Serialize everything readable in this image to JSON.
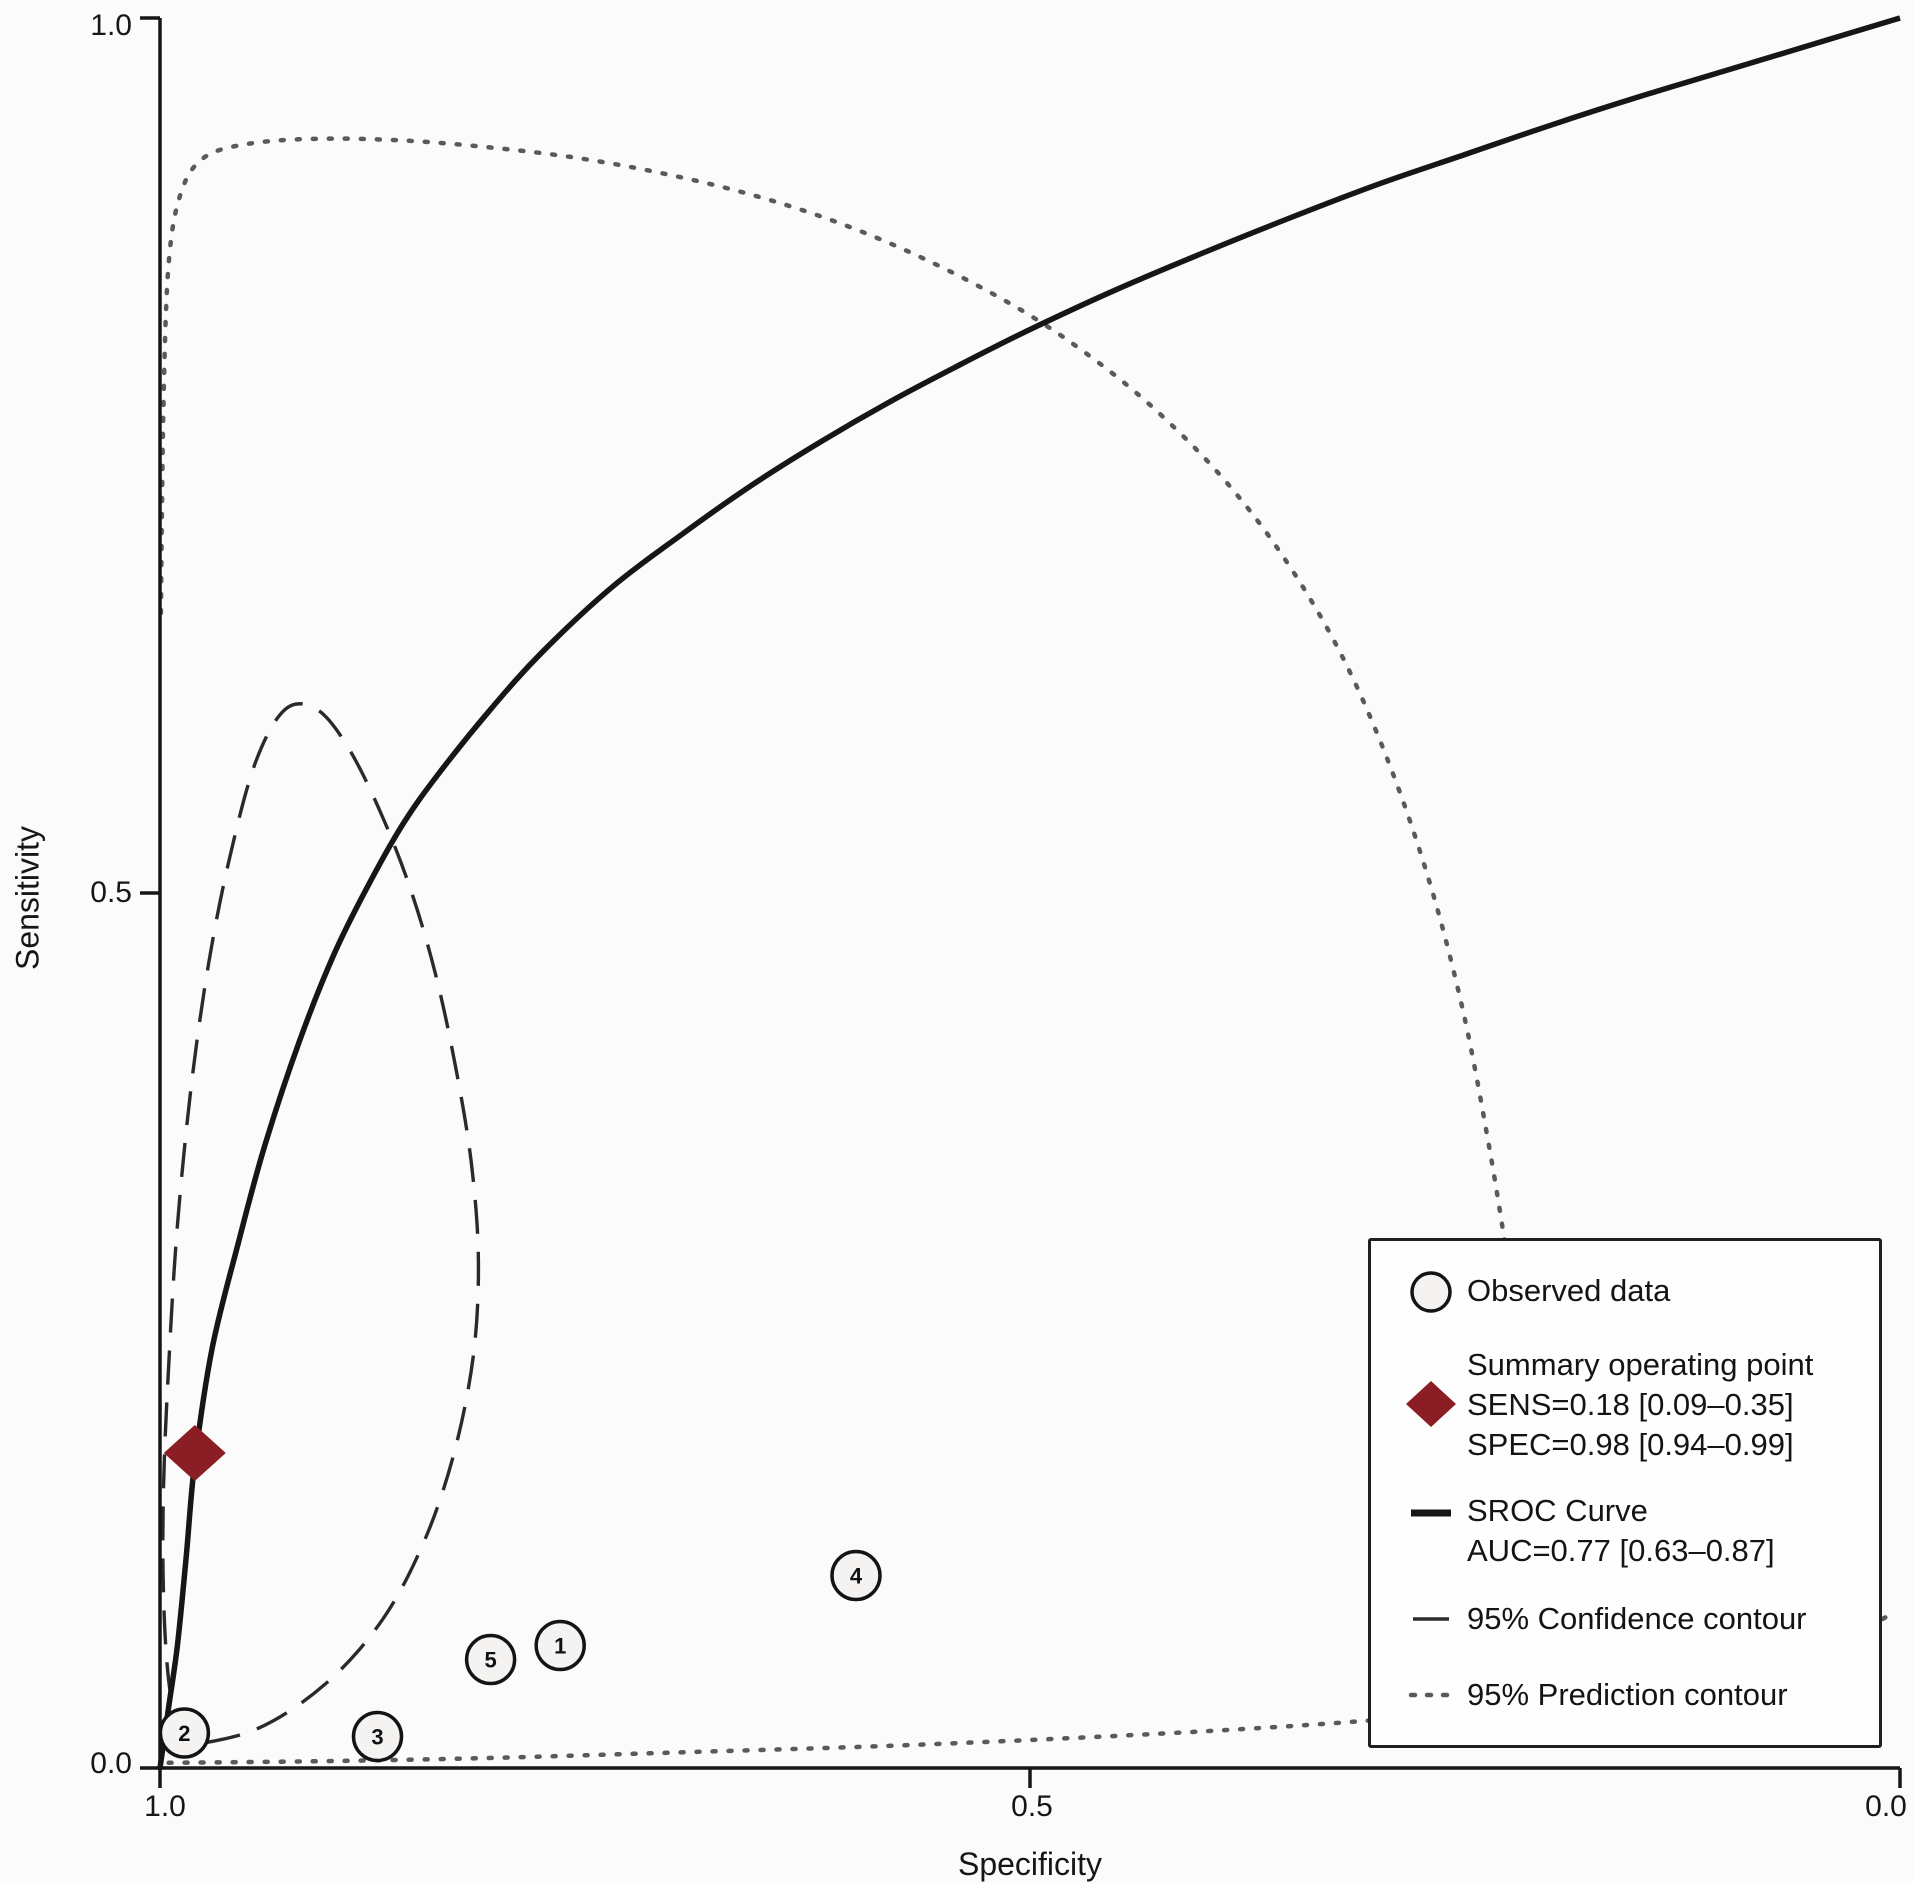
{
  "page": {
    "background": "#fbfbfb"
  },
  "chart_data": {
    "type": "line",
    "subtype": "SROC summary plot (scatter + curves)",
    "title": "",
    "xlabel": "Specificity",
    "ylabel": "Sensitivity",
    "x_axis": {
      "min": 0.0,
      "max": 1.0,
      "reversed": true,
      "ticks": [
        {
          "v": 1.0,
          "label": "1.0"
        },
        {
          "v": 0.5,
          "label": "0.5"
        },
        {
          "v": 0.0,
          "label": "0.0"
        }
      ]
    },
    "y_axis": {
      "min": 0.0,
      "max": 1.0,
      "ticks": [
        {
          "v": 1.0,
          "label": "1.0"
        },
        {
          "v": 0.5,
          "label": "0.5"
        },
        {
          "v": 0.0,
          "label": "0.0"
        }
      ]
    },
    "observed_points": [
      {
        "label": "1",
        "spec": 0.77,
        "sens": 0.07
      },
      {
        "label": "2",
        "spec": 0.986,
        "sens": 0.02
      },
      {
        "label": "3",
        "spec": 0.875,
        "sens": 0.018
      },
      {
        "label": "4",
        "spec": 0.6,
        "sens": 0.11
      },
      {
        "label": "5",
        "spec": 0.81,
        "sens": 0.062
      }
    ],
    "summary_point": {
      "spec": 0.98,
      "sens": 0.18,
      "sens_ci": "0.09–0.35",
      "spec_ci": "0.94–0.99"
    },
    "auc": {
      "value": 0.77,
      "ci": "0.63–0.87"
    },
    "sroc_curve": [
      [
        1.0,
        0.0
      ],
      [
        0.995,
        0.035
      ],
      [
        0.99,
        0.07
      ],
      [
        0.985,
        0.12
      ],
      [
        0.98,
        0.175
      ],
      [
        0.97,
        0.24
      ],
      [
        0.955,
        0.3
      ],
      [
        0.94,
        0.355
      ],
      [
        0.92,
        0.415
      ],
      [
        0.9,
        0.465
      ],
      [
        0.88,
        0.505
      ],
      [
        0.86,
        0.54
      ],
      [
        0.84,
        0.568
      ],
      [
        0.81,
        0.605
      ],
      [
        0.78,
        0.638
      ],
      [
        0.74,
        0.675
      ],
      [
        0.7,
        0.705
      ],
      [
        0.66,
        0.733
      ],
      [
        0.62,
        0.758
      ],
      [
        0.58,
        0.781
      ],
      [
        0.54,
        0.802
      ],
      [
        0.5,
        0.822
      ],
      [
        0.45,
        0.845
      ],
      [
        0.4,
        0.866
      ],
      [
        0.35,
        0.886
      ],
      [
        0.3,
        0.905
      ],
      [
        0.25,
        0.922
      ],
      [
        0.2,
        0.939
      ],
      [
        0.15,
        0.955
      ],
      [
        0.1,
        0.97
      ],
      [
        0.05,
        0.985
      ],
      [
        0.0,
        1.0
      ]
    ],
    "confidence_contour": [
      [
        0.988,
        0.012
      ],
      [
        0.995,
        0.05
      ],
      [
        0.998,
        0.1
      ],
      [
        0.998,
        0.16
      ],
      [
        0.995,
        0.23
      ],
      [
        0.99,
        0.31
      ],
      [
        0.982,
        0.39
      ],
      [
        0.972,
        0.46
      ],
      [
        0.96,
        0.52
      ],
      [
        0.945,
        0.575
      ],
      [
        0.928,
        0.605
      ],
      [
        0.91,
        0.605
      ],
      [
        0.893,
        0.585
      ],
      [
        0.875,
        0.55
      ],
      [
        0.857,
        0.505
      ],
      [
        0.842,
        0.455
      ],
      [
        0.83,
        0.4
      ],
      [
        0.821,
        0.345
      ],
      [
        0.817,
        0.29
      ],
      [
        0.82,
        0.235
      ],
      [
        0.831,
        0.18
      ],
      [
        0.848,
        0.13
      ],
      [
        0.872,
        0.085
      ],
      [
        0.905,
        0.048
      ],
      [
        0.945,
        0.022
      ],
      [
        0.988,
        0.012
      ]
    ],
    "prediction_contour": {
      "upper": [
        [
          0.9995,
          0.66
        ],
        [
          0.998,
          0.78
        ],
        [
          0.995,
          0.86
        ],
        [
          0.988,
          0.9
        ],
        [
          0.975,
          0.92
        ],
        [
          0.95,
          0.928
        ],
        [
          0.91,
          0.931
        ],
        [
          0.86,
          0.93
        ],
        [
          0.81,
          0.926
        ],
        [
          0.76,
          0.92
        ],
        [
          0.71,
          0.911
        ],
        [
          0.66,
          0.899
        ],
        [
          0.61,
          0.883
        ],
        [
          0.56,
          0.862
        ],
        [
          0.51,
          0.836
        ],
        [
          0.47,
          0.81
        ],
        [
          0.43,
          0.778
        ],
        [
          0.39,
          0.738
        ],
        [
          0.355,
          0.693
        ],
        [
          0.322,
          0.638
        ],
        [
          0.294,
          0.575
        ],
        [
          0.27,
          0.505
        ],
        [
          0.251,
          0.432
        ],
        [
          0.237,
          0.36
        ],
        [
          0.227,
          0.3
        ],
        [
          0.22,
          0.255
        ]
      ],
      "lower": [
        [
          0.995,
          0.003
        ],
        [
          0.9,
          0.004
        ],
        [
          0.8,
          0.006
        ],
        [
          0.7,
          0.009
        ],
        [
          0.6,
          0.012
        ],
        [
          0.5,
          0.016
        ],
        [
          0.4,
          0.021
        ],
        [
          0.32,
          0.026
        ],
        [
          0.25,
          0.032
        ],
        [
          0.18,
          0.04
        ],
        [
          0.12,
          0.05
        ],
        [
          0.07,
          0.062
        ],
        [
          0.03,
          0.075
        ],
        [
          0.005,
          0.088
        ]
      ]
    },
    "colors": {
      "summary_point": "#8b1e24",
      "curve": "#161616",
      "confidence": "#2a2a2a",
      "prediction": "#5a5a5a",
      "observed_fill": "#f4f3f1",
      "observed_stroke": "#141414"
    }
  },
  "legend": {
    "observed": "Observed data",
    "summary_title": "Summary operating point",
    "summary_sens": "SENS=0.18 [0.09–0.35]",
    "summary_spec": "SPEC=0.98 [0.94–0.99]",
    "sroc_title": "SROC Curve",
    "sroc_auc": "AUC=0.77 [0.63–0.87]",
    "confidence": "95% Confidence contour",
    "prediction": "95% Prediction contour"
  }
}
